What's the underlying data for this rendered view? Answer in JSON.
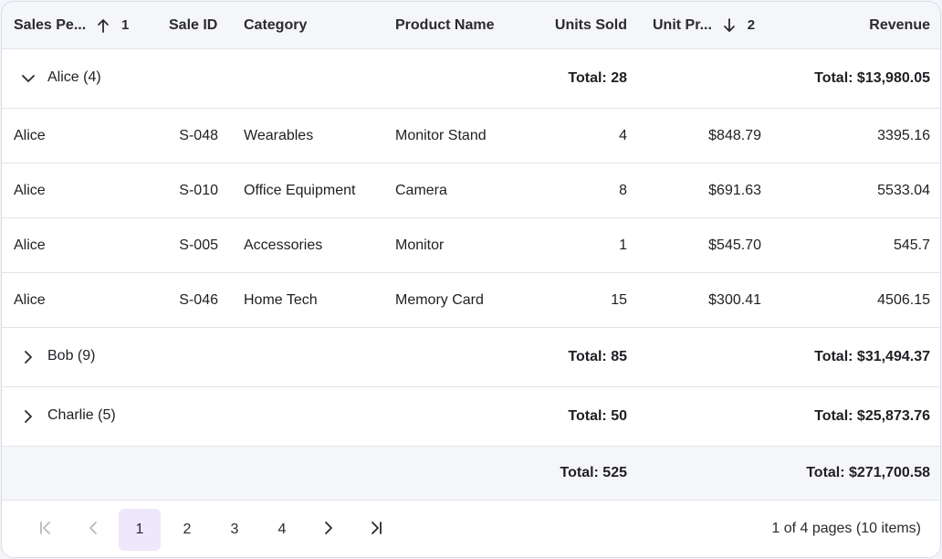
{
  "columns": {
    "sales_person": "Sales Pe...",
    "sales_person_sort_order": "1",
    "sale_id": "Sale ID",
    "category": "Category",
    "product_name": "Product Name",
    "units_sold": "Units Sold",
    "unit_price": "Unit Pr...",
    "unit_price_sort_order": "2",
    "revenue": "Revenue"
  },
  "groups": [
    {
      "label": "Alice (4)",
      "expanded": true,
      "units_total": "Total: 28",
      "revenue_total": "Total: $13,980.05",
      "rows": [
        {
          "sales_person": "Alice",
          "sale_id": "S-048",
          "category": "Wearables",
          "product_name": "Monitor Stand",
          "units_sold": "4",
          "unit_price": "$848.79",
          "revenue": "3395.16"
        },
        {
          "sales_person": "Alice",
          "sale_id": "S-010",
          "category": "Office Equipment",
          "product_name": "Camera",
          "units_sold": "8",
          "unit_price": "$691.63",
          "revenue": "5533.04"
        },
        {
          "sales_person": "Alice",
          "sale_id": "S-005",
          "category": "Accessories",
          "product_name": "Monitor",
          "units_sold": "1",
          "unit_price": "$545.70",
          "revenue": "545.7"
        },
        {
          "sales_person": "Alice",
          "sale_id": "S-046",
          "category": "Home Tech",
          "product_name": "Memory Card",
          "units_sold": "15",
          "unit_price": "$300.41",
          "revenue": "4506.15"
        }
      ]
    },
    {
      "label": "Bob (9)",
      "expanded": false,
      "units_total": "Total: 85",
      "revenue_total": "Total: $31,494.37"
    },
    {
      "label": "Charlie (5)",
      "expanded": false,
      "units_total": "Total: 50",
      "revenue_total": "Total: $25,873.76"
    }
  ],
  "footer": {
    "units_total": "Total: 525",
    "revenue_total": "Total: $271,700.58"
  },
  "pager": {
    "pages": [
      "1",
      "2",
      "3",
      "4"
    ],
    "current_page": "1",
    "info": "1 of 4 pages (10 items)",
    "icons": [
      "first-page-icon",
      "previous-page-icon",
      "next-page-icon",
      "last-page-icon"
    ]
  },
  "colors": {
    "header_bg": "#f5f6fa",
    "active_page_bg": "#efe7fb",
    "border": "#e3e4ea",
    "disabled": "#b8b8c0"
  }
}
